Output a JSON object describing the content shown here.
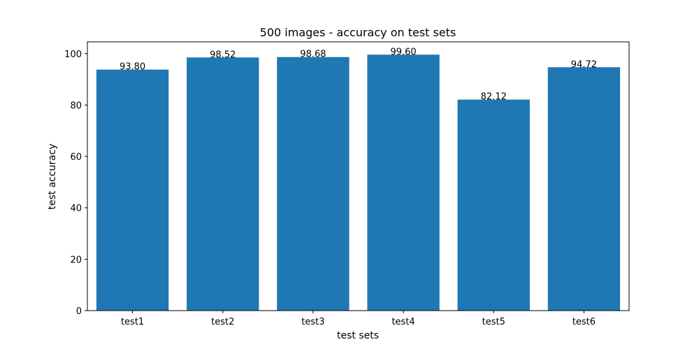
{
  "chart_data": {
    "type": "bar",
    "title": "500 images -  accuracy on test sets",
    "xlabel": "test sets",
    "ylabel": "test accuracy",
    "categories": [
      "test1",
      "test2",
      "test3",
      "test4",
      "test5",
      "test6"
    ],
    "values": [
      93.8,
      98.52,
      98.68,
      99.6,
      82.12,
      94.72
    ],
    "data_labels": [
      "93.80",
      "98.52",
      "98.68",
      "99.60",
      "82.12",
      "94.72"
    ],
    "yticks": [
      0,
      20,
      40,
      60,
      80,
      100
    ],
    "ylim": [
      0,
      104.58
    ],
    "bar_color": "#1f77b4",
    "grid": false,
    "legend": "none"
  }
}
